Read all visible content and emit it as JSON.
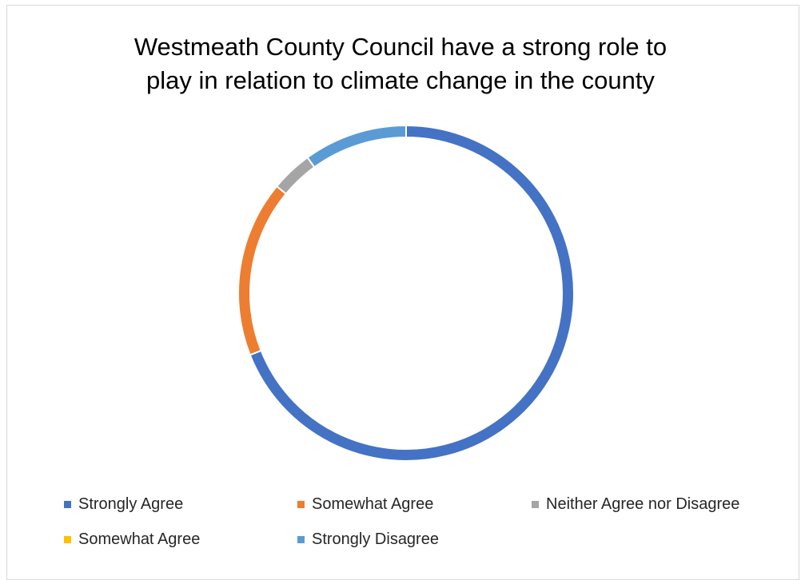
{
  "chart_data": {
    "type": "pie",
    "title_lines": [
      "Westmeath County Council have a strong role to",
      "play in relation to climate change in the county"
    ],
    "categories": [
      "Strongly Agree",
      "Somewhat Agree",
      "Neither Agree nor Disagree",
      "Somewhat Agree",
      "Strongly Disagree"
    ],
    "values": [
      69,
      17,
      4,
      0,
      10
    ],
    "colors": [
      "#4472C4",
      "#ED7D31",
      "#A5A5A5",
      "#FFC000",
      "#5B9BD5"
    ],
    "legend_position": "bottom",
    "donut": true
  }
}
